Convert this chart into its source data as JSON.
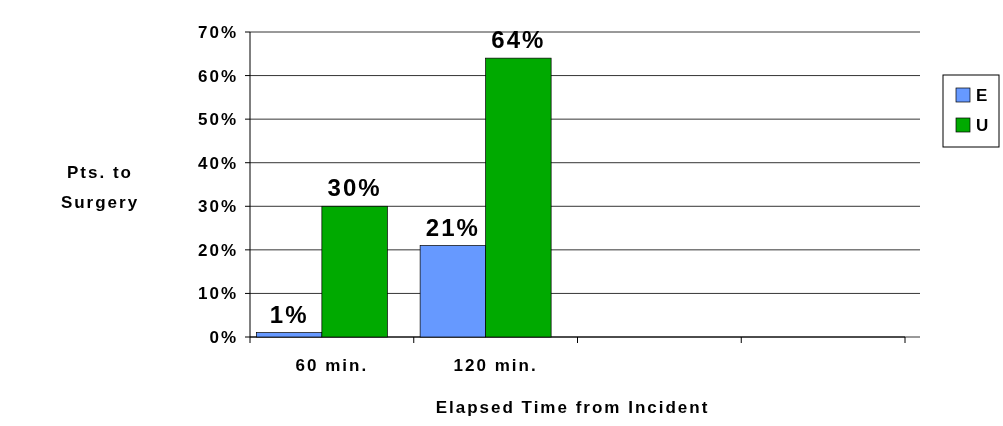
{
  "chart_data": {
    "type": "bar",
    "xlabel": "Elapsed Time from Incident",
    "ylabel": "Pts. to\nSurgery",
    "categories": [
      "60 min.",
      "120 min.",
      null,
      null
    ],
    "series": [
      {
        "name": "E",
        "color": "#6699ff",
        "values": [
          1,
          21,
          null,
          null
        ],
        "value_labels": [
          "1%",
          "21%",
          null,
          null
        ]
      },
      {
        "name": "U",
        "color": "#00aa00",
        "values": [
          30,
          64,
          null,
          null
        ],
        "value_labels": [
          "30%",
          "64%",
          null,
          null
        ]
      }
    ],
    "ylim": [
      0,
      70
    ],
    "yticks": [
      {
        "value": 0,
        "label": "0%"
      },
      {
        "value": 10,
        "label": "10%"
      },
      {
        "value": 20,
        "label": "20%"
      },
      {
        "value": 30,
        "label": "30%"
      },
      {
        "value": 40,
        "label": "40%"
      },
      {
        "value": 50,
        "label": "50%"
      },
      {
        "value": 60,
        "label": "60%"
      },
      {
        "value": 70,
        "label": "70%"
      }
    ],
    "grid": "y",
    "legend": "right"
  }
}
